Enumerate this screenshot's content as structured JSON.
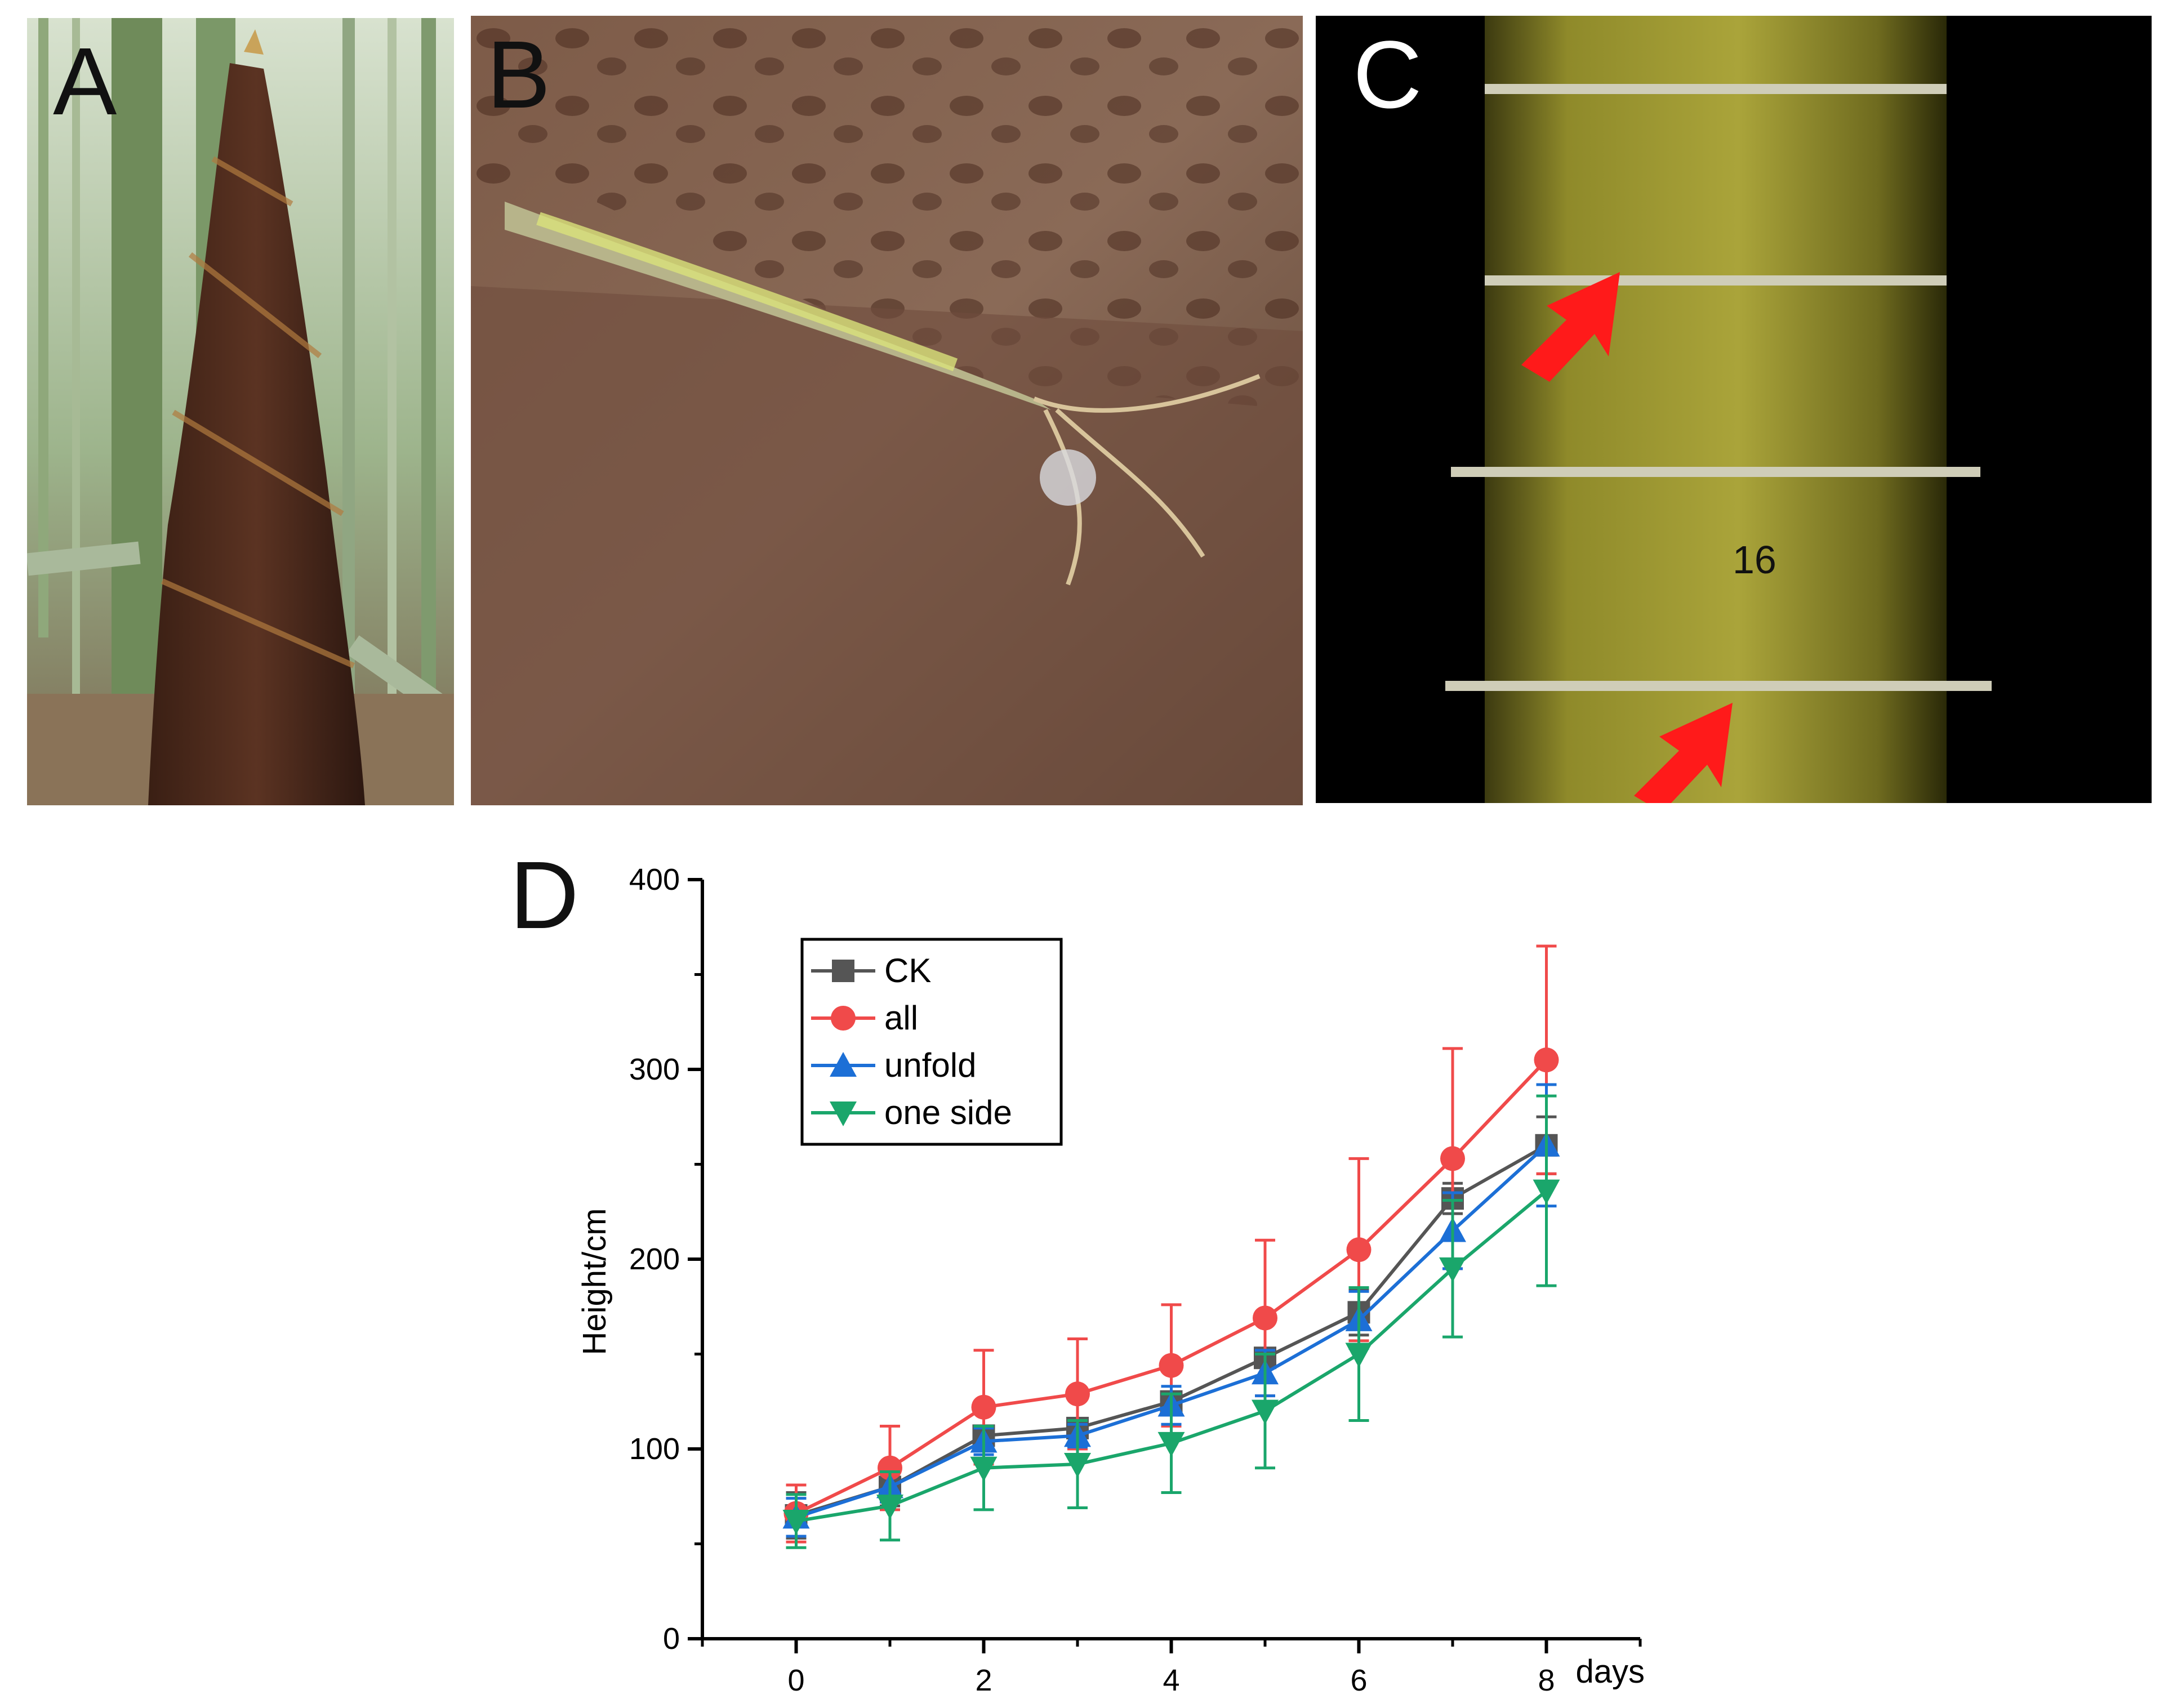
{
  "panels": {
    "a": {
      "letter": "A",
      "depicts": "bamboo shoot in a bamboo forest"
    },
    "b": {
      "letter": "B",
      "depicts": "close-up of hairy bamboo shoot sheath"
    },
    "c": {
      "letter": "C",
      "depicts": "bamboo culm internodes on black background",
      "arrow_color": "#ff1a1a"
    },
    "d": {
      "letter": "D"
    }
  },
  "colors": {
    "CK": "#555555",
    "all": "#f04a4a",
    "unfold": "#1c6fd6",
    "one side": "#1aa66b"
  },
  "chart_data": {
    "type": "line",
    "title": "",
    "xlabel": "days",
    "ylabel": "Height/cm",
    "xlim": [
      -1,
      9
    ],
    "ylim": [
      0,
      400
    ],
    "x": [
      0,
      1,
      2,
      3,
      4,
      5,
      6,
      7,
      8
    ],
    "xticks": [
      "0",
      "2",
      "4",
      "6",
      "8"
    ],
    "yticks": [
      "0",
      "100",
      "200",
      "300",
      "400"
    ],
    "legend_position": "top-left",
    "series": [
      {
        "name": "CK",
        "marker": "square",
        "values": [
          65,
          80,
          107,
          111,
          125,
          148,
          172,
          232,
          260
        ],
        "errors": [
          12,
          10,
          5,
          5,
          5,
          5,
          12,
          8,
          15
        ]
      },
      {
        "name": "all",
        "marker": "circle",
        "values": [
          66,
          90,
          122,
          129,
          144,
          169,
          205,
          253,
          305
        ],
        "errors": [
          15,
          22,
          30,
          29,
          32,
          41,
          48,
          58,
          60
        ]
      },
      {
        "name": "unfold",
        "marker": "triangle-up",
        "values": [
          64,
          80,
          104,
          107,
          123,
          140,
          168,
          215,
          260
        ],
        "errors": [
          10,
          8,
          7,
          6,
          10,
          12,
          15,
          20,
          32
        ]
      },
      {
        "name": "one side",
        "marker": "triangle-down",
        "values": [
          62,
          70,
          90,
          92,
          103,
          120,
          150,
          195,
          236
        ],
        "errors": [
          14,
          18,
          22,
          23,
          26,
          30,
          35,
          36,
          50
        ]
      }
    ]
  }
}
